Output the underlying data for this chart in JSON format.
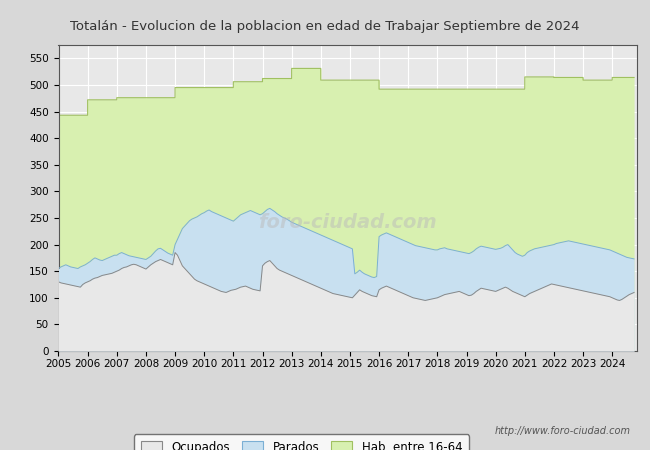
{
  "title": "Totalán - Evolucion de la poblacion en edad de Trabajar Septiembre de 2024",
  "title_color": "#333333",
  "url_text": "http://www.foro-ciudad.com",
  "watermark": "foro-ciudad.com",
  "legend_labels": [
    "Ocupados",
    "Parados",
    "Hab. entre 16-64"
  ],
  "color_ocupados": "#e8e8e8",
  "color_parados": "#c8e0f0",
  "color_hab": "#d8f0b0",
  "line_ocupados": "#888888",
  "line_parados": "#7bafd4",
  "line_hab": "#a0c060",
  "bg_color": "#e8e8e8",
  "plot_bg": "#e8e8e8",
  "ylim": [
    0,
    575
  ],
  "yticks": [
    0,
    50,
    100,
    150,
    200,
    250,
    300,
    350,
    400,
    450,
    500,
    550
  ],
  "hab_years": [
    2005,
    2006,
    2007,
    2008,
    2009,
    2010,
    2011,
    2012,
    2013,
    2014,
    2015,
    2016,
    2017,
    2018,
    2019,
    2020,
    2021,
    2022,
    2023,
    2024
  ],
  "hab_vals": [
    443,
    472,
    476,
    476,
    495,
    495,
    506,
    512,
    531,
    509,
    509,
    492,
    492,
    492,
    492,
    492,
    515,
    514,
    509,
    514
  ],
  "parados_x": [
    2005.0,
    2005.083,
    2005.167,
    2005.25,
    2005.333,
    2005.417,
    2005.5,
    2005.583,
    2005.667,
    2005.75,
    2005.833,
    2005.917,
    2006.0,
    2006.083,
    2006.167,
    2006.25,
    2006.333,
    2006.417,
    2006.5,
    2006.583,
    2006.667,
    2006.75,
    2006.833,
    2006.917,
    2007.0,
    2007.083,
    2007.167,
    2007.25,
    2007.333,
    2007.417,
    2007.5,
    2007.583,
    2007.667,
    2007.75,
    2007.833,
    2007.917,
    2008.0,
    2008.083,
    2008.167,
    2008.25,
    2008.333,
    2008.417,
    2008.5,
    2008.583,
    2008.667,
    2008.75,
    2008.833,
    2008.917,
    2009.0,
    2009.083,
    2009.167,
    2009.25,
    2009.333,
    2009.417,
    2009.5,
    2009.583,
    2009.667,
    2009.75,
    2009.833,
    2009.917,
    2010.0,
    2010.083,
    2010.167,
    2010.25,
    2010.333,
    2010.417,
    2010.5,
    2010.583,
    2010.667,
    2010.75,
    2010.833,
    2010.917,
    2011.0,
    2011.083,
    2011.167,
    2011.25,
    2011.333,
    2011.417,
    2011.5,
    2011.583,
    2011.667,
    2011.75,
    2011.833,
    2011.917,
    2012.0,
    2012.083,
    2012.167,
    2012.25,
    2012.333,
    2012.417,
    2012.5,
    2012.583,
    2012.667,
    2012.75,
    2012.833,
    2012.917,
    2013.0,
    2013.083,
    2013.167,
    2013.25,
    2013.333,
    2013.417,
    2013.5,
    2013.583,
    2013.667,
    2013.75,
    2013.833,
    2013.917,
    2014.0,
    2014.083,
    2014.167,
    2014.25,
    2014.333,
    2014.417,
    2014.5,
    2014.583,
    2014.667,
    2014.75,
    2014.833,
    2014.917,
    2015.0,
    2015.083,
    2015.167,
    2015.25,
    2015.333,
    2015.417,
    2015.5,
    2015.583,
    2015.667,
    2015.75,
    2015.833,
    2015.917,
    2016.0,
    2016.083,
    2016.167,
    2016.25,
    2016.333,
    2016.417,
    2016.5,
    2016.583,
    2016.667,
    2016.75,
    2016.833,
    2016.917,
    2017.0,
    2017.083,
    2017.167,
    2017.25,
    2017.333,
    2017.417,
    2017.5,
    2017.583,
    2017.667,
    2017.75,
    2017.833,
    2017.917,
    2018.0,
    2018.083,
    2018.167,
    2018.25,
    2018.333,
    2018.417,
    2018.5,
    2018.583,
    2018.667,
    2018.75,
    2018.833,
    2018.917,
    2019.0,
    2019.083,
    2019.167,
    2019.25,
    2019.333,
    2019.417,
    2019.5,
    2019.583,
    2019.667,
    2019.75,
    2019.833,
    2019.917,
    2020.0,
    2020.083,
    2020.167,
    2020.25,
    2020.333,
    2020.417,
    2020.5,
    2020.583,
    2020.667,
    2020.75,
    2020.833,
    2020.917,
    2021.0,
    2021.083,
    2021.167,
    2021.25,
    2021.333,
    2021.417,
    2021.5,
    2021.583,
    2021.667,
    2021.75,
    2021.833,
    2021.917,
    2022.0,
    2022.083,
    2022.167,
    2022.25,
    2022.333,
    2022.417,
    2022.5,
    2022.583,
    2022.667,
    2022.75,
    2022.833,
    2022.917,
    2023.0,
    2023.083,
    2023.167,
    2023.25,
    2023.333,
    2023.417,
    2023.5,
    2023.583,
    2023.667,
    2023.75,
    2023.833,
    2023.917,
    2024.0,
    2024.083,
    2024.167,
    2024.25,
    2024.333,
    2024.417,
    2024.5,
    2024.583,
    2024.667,
    2024.75
  ],
  "parados_y": [
    155,
    158,
    160,
    162,
    160,
    158,
    157,
    156,
    155,
    158,
    160,
    162,
    165,
    168,
    172,
    175,
    173,
    171,
    170,
    172,
    174,
    176,
    178,
    180,
    180,
    183,
    185,
    183,
    181,
    179,
    178,
    177,
    176,
    175,
    174,
    173,
    172,
    175,
    178,
    183,
    188,
    192,
    193,
    190,
    187,
    184,
    182,
    180,
    200,
    210,
    220,
    230,
    235,
    240,
    245,
    248,
    250,
    252,
    255,
    258,
    260,
    263,
    265,
    262,
    260,
    258,
    256,
    254,
    252,
    250,
    248,
    246,
    244,
    248,
    252,
    256,
    258,
    260,
    262,
    264,
    262,
    260,
    258,
    256,
    258,
    262,
    266,
    268,
    265,
    262,
    258,
    255,
    252,
    250,
    248,
    245,
    242,
    240,
    238,
    236,
    234,
    232,
    230,
    228,
    226,
    224,
    222,
    220,
    218,
    216,
    214,
    212,
    210,
    208,
    206,
    204,
    202,
    200,
    198,
    196,
    194,
    192,
    145,
    148,
    152,
    148,
    145,
    143,
    141,
    139,
    138,
    140,
    215,
    218,
    220,
    222,
    220,
    218,
    216,
    214,
    212,
    210,
    208,
    206,
    204,
    202,
    200,
    198,
    197,
    196,
    195,
    194,
    193,
    192,
    191,
    190,
    190,
    192,
    193,
    194,
    192,
    191,
    190,
    189,
    188,
    187,
    186,
    185,
    184,
    183,
    185,
    188,
    192,
    195,
    197,
    196,
    195,
    194,
    193,
    192,
    191,
    192,
    193,
    195,
    198,
    200,
    195,
    190,
    185,
    182,
    180,
    178,
    180,
    185,
    188,
    190,
    192,
    193,
    194,
    195,
    196,
    197,
    198,
    199,
    200,
    202,
    203,
    204,
    205,
    206,
    207,
    206,
    205,
    204,
    203,
    202,
    201,
    200,
    199,
    198,
    197,
    196,
    195,
    194,
    193,
    192,
    191,
    190,
    188,
    186,
    184,
    182,
    180,
    178,
    176,
    175,
    174,
    173
  ],
  "ocupados_y": [
    130,
    128,
    127,
    126,
    125,
    124,
    123,
    122,
    121,
    120,
    125,
    128,
    130,
    132,
    135,
    137,
    138,
    140,
    142,
    143,
    144,
    145,
    146,
    148,
    150,
    152,
    155,
    157,
    158,
    160,
    162,
    163,
    162,
    160,
    158,
    156,
    154,
    158,
    162,
    165,
    168,
    170,
    172,
    170,
    168,
    166,
    164,
    162,
    185,
    180,
    170,
    160,
    155,
    150,
    145,
    140,
    135,
    132,
    130,
    128,
    126,
    124,
    122,
    120,
    118,
    116,
    114,
    112,
    111,
    110,
    112,
    114,
    115,
    116,
    118,
    120,
    121,
    122,
    120,
    118,
    116,
    115,
    114,
    113,
    160,
    165,
    168,
    170,
    165,
    160,
    155,
    152,
    150,
    148,
    146,
    144,
    142,
    140,
    138,
    136,
    134,
    132,
    130,
    128,
    126,
    124,
    122,
    120,
    118,
    116,
    114,
    112,
    110,
    108,
    107,
    106,
    105,
    104,
    103,
    102,
    101,
    100,
    105,
    110,
    115,
    112,
    110,
    108,
    106,
    104,
    103,
    102,
    115,
    118,
    120,
    122,
    120,
    118,
    116,
    114,
    112,
    110,
    108,
    106,
    104,
    102,
    100,
    99,
    98,
    97,
    96,
    95,
    96,
    97,
    98,
    99,
    100,
    102,
    104,
    106,
    107,
    108,
    109,
    110,
    111,
    112,
    110,
    108,
    106,
    104,
    105,
    108,
    112,
    115,
    118,
    117,
    116,
    115,
    114,
    113,
    112,
    114,
    116,
    118,
    120,
    118,
    115,
    112,
    110,
    108,
    106,
    104,
    102,
    105,
    108,
    110,
    112,
    114,
    116,
    118,
    120,
    122,
    124,
    126,
    125,
    124,
    123,
    122,
    121,
    120,
    119,
    118,
    117,
    116,
    115,
    114,
    113,
    112,
    111,
    110,
    109,
    108,
    107,
    106,
    105,
    104,
    103,
    102,
    100,
    98,
    96,
    95,
    97,
    100,
    103,
    106,
    108,
    110
  ]
}
